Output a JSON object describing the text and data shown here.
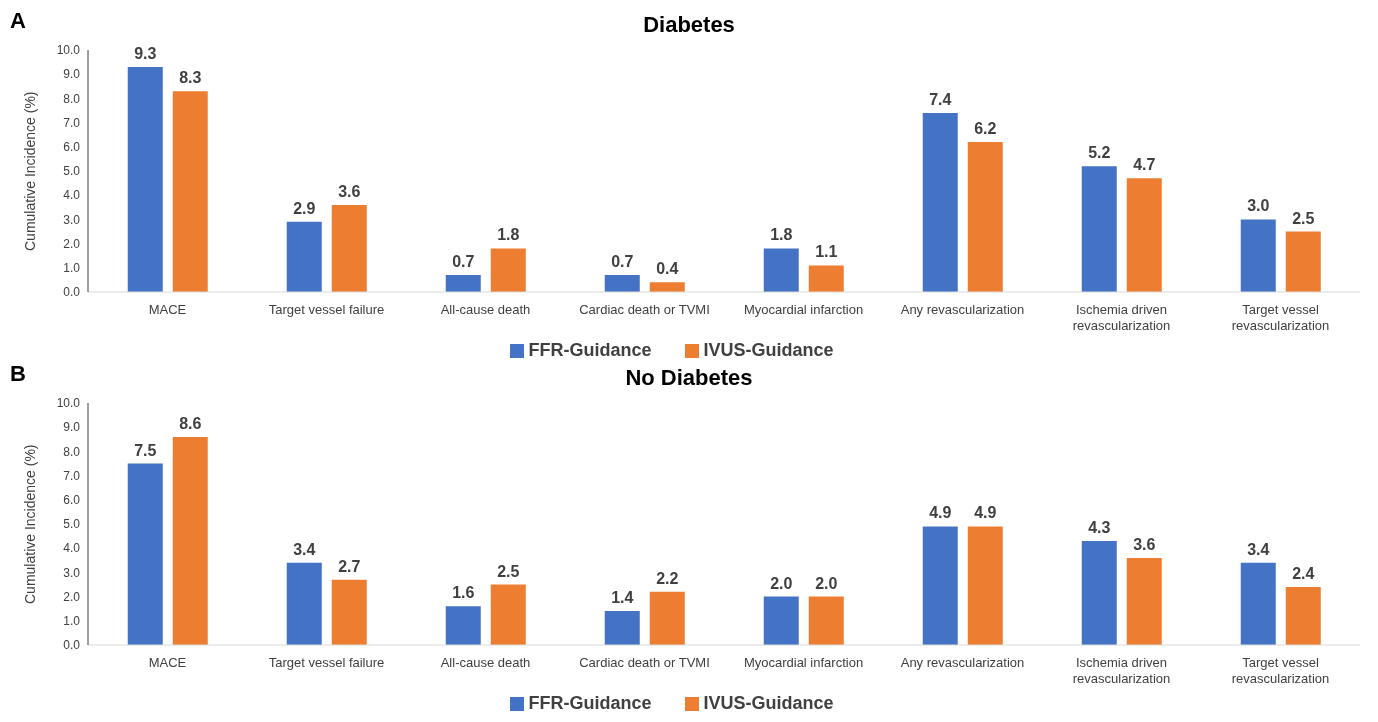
{
  "chart_data": [
    {
      "type": "bar",
      "title": "Diabetes",
      "annotations": [
        "A"
      ],
      "ylabel": "Cumulative Incidence (%)",
      "categories": [
        "MACE",
        "Target vessel failure",
        "All-cause death",
        "Cardiac death or TVMI",
        "Myocardial infarction",
        "Any revascularization",
        "Ischemia driven revascularization",
        "Target vessel revascularization"
      ],
      "series": [
        {
          "name": "FFR-Guidance",
          "color": "#4472c4",
          "values": [
            9.3,
            2.9,
            0.7,
            0.7,
            1.8,
            7.4,
            5.2,
            3.0
          ],
          "value_labels": [
            "9.3",
            "2.9",
            "0.7",
            "0.7",
            "1.8",
            "7.4",
            "5.2",
            "3.0"
          ]
        },
        {
          "name": "IVUS-Guidance",
          "color": "#ed7d31",
          "values": [
            8.3,
            3.6,
            1.8,
            0.4,
            1.1,
            6.2,
            4.7,
            2.5
          ],
          "value_labels": [
            "8.3",
            "3.6",
            "1.8",
            "0.4",
            "1.1",
            "6.2",
            "4.7",
            "2.5"
          ]
        }
      ],
      "ylim": [
        0,
        10
      ],
      "yticks": [
        {
          "value": 0,
          "label": "0.0"
        },
        {
          "value": 1,
          "label": "1.0"
        },
        {
          "value": 2,
          "label": "2.0"
        },
        {
          "value": 3,
          "label": "3.0"
        },
        {
          "value": 4,
          "label": "4.0"
        },
        {
          "value": 5,
          "label": "5.0"
        },
        {
          "value": 6,
          "label": "6.0"
        },
        {
          "value": 7,
          "label": "7.0"
        },
        {
          "value": 8,
          "label": "8.0"
        },
        {
          "value": 9,
          "label": "9.0"
        },
        {
          "value": 10,
          "label": "10.0"
        }
      ],
      "legend": "bottom"
    },
    {
      "type": "bar",
      "title": "No Diabetes",
      "annotations": [
        "B"
      ],
      "ylabel": "Cumulative Incidence (%)",
      "categories": [
        "MACE",
        "Target vessel failure",
        "All-cause death",
        "Cardiac death or TVMI",
        "Myocardial infarction",
        "Any revascularization",
        "Ischemia driven revascularization",
        "Target vessel revascularization"
      ],
      "series": [
        {
          "name": "FFR-Guidance",
          "color": "#4472c4",
          "values": [
            7.5,
            3.4,
            1.6,
            1.4,
            2.0,
            4.9,
            4.3,
            3.4
          ],
          "value_labels": [
            "7.5",
            "3.4",
            "1.6",
            "1.4",
            "2.0",
            "4.9",
            "4.3",
            "3.4"
          ]
        },
        {
          "name": "IVUS-Guidance",
          "color": "#ed7d31",
          "values": [
            8.6,
            2.7,
            2.5,
            2.2,
            2.0,
            4.9,
            3.6,
            2.4
          ],
          "value_labels": [
            "8.6",
            "2.7",
            "2.5",
            "2.2",
            "2.0",
            "4.9",
            "3.6",
            "2.4"
          ]
        }
      ],
      "ylim": [
        0,
        10
      ],
      "yticks": [
        {
          "value": 0,
          "label": "0.0"
        },
        {
          "value": 1,
          "label": "1.0"
        },
        {
          "value": 2,
          "label": "2.0"
        },
        {
          "value": 3,
          "label": "3.0"
        },
        {
          "value": 4,
          "label": "4.0"
        },
        {
          "value": 5,
          "label": "5.0"
        },
        {
          "value": 6,
          "label": "6.0"
        },
        {
          "value": 7,
          "label": "7.0"
        },
        {
          "value": 8,
          "label": "8.0"
        },
        {
          "value": 9,
          "label": "9.0"
        },
        {
          "value": 10,
          "label": "10.0"
        }
      ],
      "legend": "bottom"
    }
  ]
}
